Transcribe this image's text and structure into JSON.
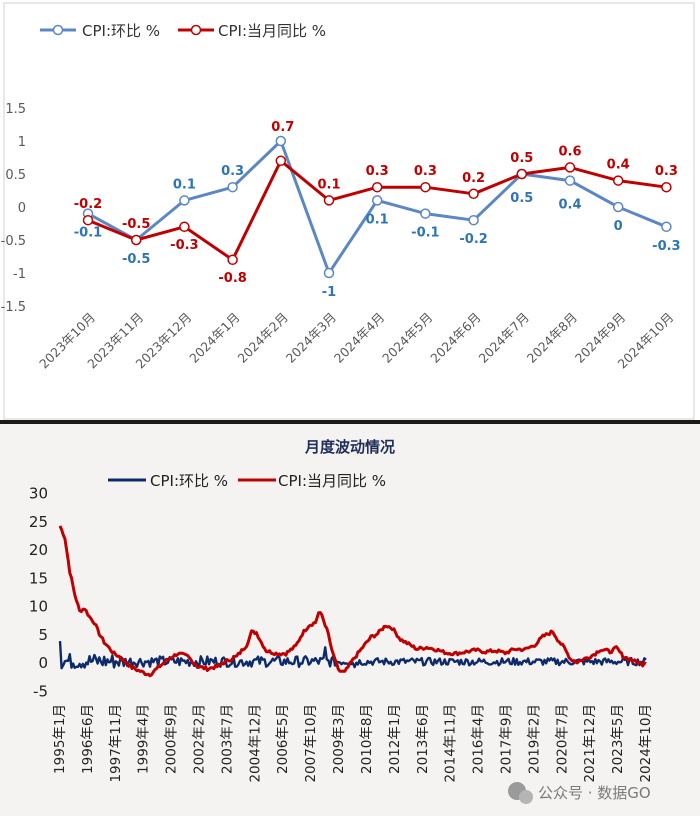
{
  "chart_data": [
    {
      "type": "line",
      "title": "",
      "categories": [
        "2023年10月",
        "2023年11月",
        "2023年12月",
        "2024年1月",
        "2024年2月",
        "2024年3月",
        "2024年4月",
        "2024年5月",
        "2024年6月",
        "2024年7月",
        "2024年8月",
        "2024年9月",
        "2024年10月"
      ],
      "series": [
        {
          "name": "CPI:环比 %",
          "color": "#5b87c5",
          "label_color": "#2e75b6",
          "values": [
            -0.1,
            -0.5,
            0.1,
            0.3,
            1.0,
            -1.0,
            0.1,
            -0.1,
            -0.2,
            0.5,
            0.4,
            0.0,
            -0.3
          ],
          "labels": [
            "-0.1",
            "-0.5",
            "0.1",
            "0.3",
            "",
            "-1",
            "0.1",
            "-0.1",
            "-0.2",
            "0.5",
            "0.4",
            "0",
            "-0.3"
          ]
        },
        {
          "name": "CPI:当月同比 %",
          "color": "#c00000",
          "label_color": "#c00000",
          "values": [
            -0.2,
            -0.5,
            -0.3,
            -0.8,
            0.7,
            0.1,
            0.3,
            0.3,
            0.2,
            0.5,
            0.6,
            0.4,
            0.3
          ],
          "labels": [
            "-0.2",
            "-0.5",
            "-0.3",
            "-0.8",
            "0.7",
            "0.1",
            "0.3",
            "0.3",
            "0.2",
            "0.5",
            "0.6",
            "0.4",
            "0.3"
          ]
        }
      ],
      "ylim": [
        -1.5,
        1.5
      ],
      "yticks": [
        "1.5",
        "1",
        "0.5",
        "0",
        "-0.5",
        "-1",
        "-1.5"
      ],
      "legend": "top-left"
    },
    {
      "type": "line",
      "title": "月度波动情况",
      "x_tick_labels": [
        "1995年1月",
        "1996年6月",
        "1997年11月",
        "1999年4月",
        "2000年9月",
        "2002年2月",
        "2003年7月",
        "2004年12月",
        "2006年5月",
        "2007年10月",
        "2009年3月",
        "2010年8月",
        "2012年1月",
        "2013年6月",
        "2014年11月",
        "2016年4月",
        "2017年9月",
        "2019年2月",
        "2020年7月",
        "2021年12月",
        "2023年5月",
        "2024年10月"
      ],
      "x_range": [
        "1995年1月",
        "2024年10月"
      ],
      "series": [
        {
          "name": "CPI:环比 %",
          "color": "#0d2b6b"
        },
        {
          "name": "CPI:当月同比 %",
          "color": "#c00000",
          "anchors": [
            {
              "t": 0,
              "v": 24.1
            },
            {
              "t": 3,
              "v": 22.0
            },
            {
              "t": 6,
              "v": 16.0
            },
            {
              "t": 9,
              "v": 12.0
            },
            {
              "t": 12,
              "v": 9.0
            },
            {
              "t": 15,
              "v": 9.5
            },
            {
              "t": 18,
              "v": 8.0
            },
            {
              "t": 21,
              "v": 7.0
            },
            {
              "t": 24,
              "v": 5.0
            },
            {
              "t": 27,
              "v": 3.5
            },
            {
              "t": 30,
              "v": 2.5
            },
            {
              "t": 33,
              "v": 1.5
            },
            {
              "t": 36,
              "v": 1.0
            },
            {
              "t": 40,
              "v": 0.0
            },
            {
              "t": 44,
              "v": -1.0
            },
            {
              "t": 48,
              "v": -1.5
            },
            {
              "t": 52,
              "v": -2.0
            },
            {
              "t": 55,
              "v": -2.2
            },
            {
              "t": 60,
              "v": -1.0
            },
            {
              "t": 66,
              "v": 0.5
            },
            {
              "t": 72,
              "v": 1.5
            },
            {
              "t": 78,
              "v": 1.0
            },
            {
              "t": 84,
              "v": -0.8
            },
            {
              "t": 90,
              "v": -1.2
            },
            {
              "t": 96,
              "v": -0.8
            },
            {
              "t": 102,
              "v": 0.2
            },
            {
              "t": 108,
              "v": 1.0
            },
            {
              "t": 114,
              "v": 3.0
            },
            {
              "t": 117,
              "v": 5.3
            },
            {
              "t": 120,
              "v": 5.2
            },
            {
              "t": 123,
              "v": 3.5
            },
            {
              "t": 126,
              "v": 2.0
            },
            {
              "t": 132,
              "v": 1.5
            },
            {
              "t": 138,
              "v": 1.5
            },
            {
              "t": 144,
              "v": 2.8
            },
            {
              "t": 148,
              "v": 5.0
            },
            {
              "t": 152,
              "v": 6.5
            },
            {
              "t": 156,
              "v": 7.0
            },
            {
              "t": 158,
              "v": 8.7
            },
            {
              "t": 160,
              "v": 8.3
            },
            {
              "t": 164,
              "v": 4.9
            },
            {
              "t": 166,
              "v": 2.0
            },
            {
              "t": 168,
              "v": 0.5
            },
            {
              "t": 170,
              "v": -1.5
            },
            {
              "t": 174,
              "v": -1.8
            },
            {
              "t": 178,
              "v": 0.0
            },
            {
              "t": 182,
              "v": 1.5
            },
            {
              "t": 186,
              "v": 3.0
            },
            {
              "t": 190,
              "v": 4.4
            },
            {
              "t": 194,
              "v": 5.0
            },
            {
              "t": 199,
              "v": 6.5
            },
            {
              "t": 203,
              "v": 6.0
            },
            {
              "t": 208,
              "v": 4.0
            },
            {
              "t": 214,
              "v": 3.0
            },
            {
              "t": 218,
              "v": 2.3
            },
            {
              "t": 224,
              "v": 2.6
            },
            {
              "t": 230,
              "v": 2.2
            },
            {
              "t": 236,
              "v": 1.6
            },
            {
              "t": 242,
              "v": 1.5
            },
            {
              "t": 248,
              "v": 1.8
            },
            {
              "t": 254,
              "v": 2.1
            },
            {
              "t": 260,
              "v": 1.8
            },
            {
              "t": 266,
              "v": 2.0
            },
            {
              "t": 272,
              "v": 1.6
            },
            {
              "t": 278,
              "v": 2.3
            },
            {
              "t": 284,
              "v": 2.2
            },
            {
              "t": 290,
              "v": 3.0
            },
            {
              "t": 295,
              "v": 4.5
            },
            {
              "t": 301,
              "v": 5.4
            },
            {
              "t": 304,
              "v": 4.0
            },
            {
              "t": 308,
              "v": 2.5
            },
            {
              "t": 312,
              "v": 0.5
            },
            {
              "t": 316,
              "v": 0.0
            },
            {
              "t": 320,
              "v": 0.5
            },
            {
              "t": 324,
              "v": 1.0
            },
            {
              "t": 327,
              "v": 1.5
            },
            {
              "t": 330,
              "v": 2.2
            },
            {
              "t": 333,
              "v": 2.1
            },
            {
              "t": 336,
              "v": 1.8
            },
            {
              "t": 340,
              "v": 2.5
            },
            {
              "t": 344,
              "v": 1.0
            },
            {
              "t": 348,
              "v": 0.5
            },
            {
              "t": 352,
              "v": 0.0
            },
            {
              "t": 356,
              "v": -0.4
            },
            {
              "t": 360,
              "v": -0.2
            },
            {
              "t": 364,
              "v": 0.3
            },
            {
              "t": 369,
              "v": 0.5
            },
            {
              "t": 357,
              "v": 0.0
            }
          ]
        }
      ],
      "ylim": [
        -5,
        30
      ],
      "yticks": [
        "30",
        "25",
        "20",
        "15",
        "10",
        "5",
        "0",
        "-5"
      ],
      "legend": "top"
    }
  ],
  "watermark": {
    "text": "公众号 · 数据GO"
  }
}
